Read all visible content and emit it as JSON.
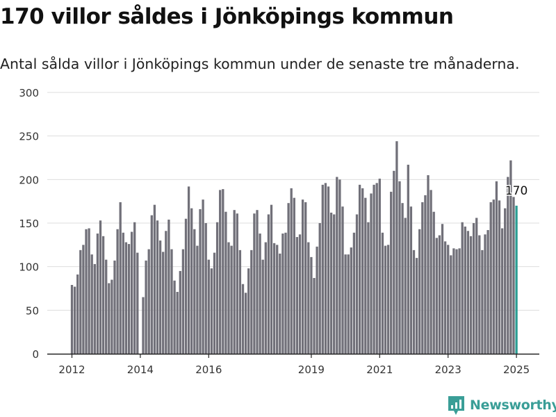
{
  "title": "170 villor såldes i Jönköpings kommun",
  "subtitle": "Antal sålda villor i Jönköpings kommun under de senaste tre månaderna.",
  "brand": {
    "name": "Newsworthy",
    "icon": "newsworthy-logo-icon"
  },
  "colors": {
    "bar": "#717079",
    "highlight": "#2a9d93",
    "grid": "#dddddd",
    "axis": "#222222"
  },
  "chart_data": {
    "type": "bar",
    "title": "",
    "xlabel": "",
    "ylabel": "",
    "ylim": [
      0,
      300
    ],
    "yticks": [
      0,
      50,
      100,
      150,
      200,
      250,
      300
    ],
    "xticks": [
      "2012",
      "2014",
      "2016",
      "2019",
      "2021",
      "2023",
      "2025"
    ],
    "grid": true,
    "start": "2012-01",
    "values": [
      79,
      77,
      91,
      119,
      125,
      143,
      144,
      114,
      103,
      138,
      153,
      135,
      108,
      81,
      85,
      107,
      143,
      174,
      139,
      128,
      126,
      140,
      151,
      116,
      null,
      65,
      107,
      120,
      159,
      171,
      153,
      130,
      117,
      141,
      154,
      120,
      84,
      71,
      95,
      120,
      155,
      192,
      167,
      143,
      124,
      166,
      177,
      150,
      108,
      98,
      116,
      151,
      188,
      189,
      163,
      128,
      124,
      165,
      161,
      119,
      80,
      70,
      98,
      119,
      161,
      165,
      138,
      108,
      128,
      160,
      171,
      127,
      125,
      115,
      138,
      139,
      173,
      190,
      179,
      134,
      137,
      177,
      174,
      128,
      111,
      87,
      123,
      150,
      194,
      196,
      192,
      162,
      160,
      203,
      200,
      169,
      114,
      114,
      122,
      139,
      160,
      194,
      190,
      179,
      151,
      184,
      194,
      196,
      201,
      139,
      124,
      125,
      186,
      210,
      244,
      198,
      173,
      156,
      217,
      169,
      119,
      110,
      143,
      174,
      182,
      205,
      188,
      163,
      133,
      136,
      149,
      129,
      125,
      113,
      121,
      120,
      121,
      151,
      146,
      141,
      135,
      150,
      156,
      136,
      119,
      137,
      142,
      174,
      177,
      198,
      176,
      144,
      167,
      203,
      222,
      180,
      170
    ],
    "latest_value": 170
  }
}
